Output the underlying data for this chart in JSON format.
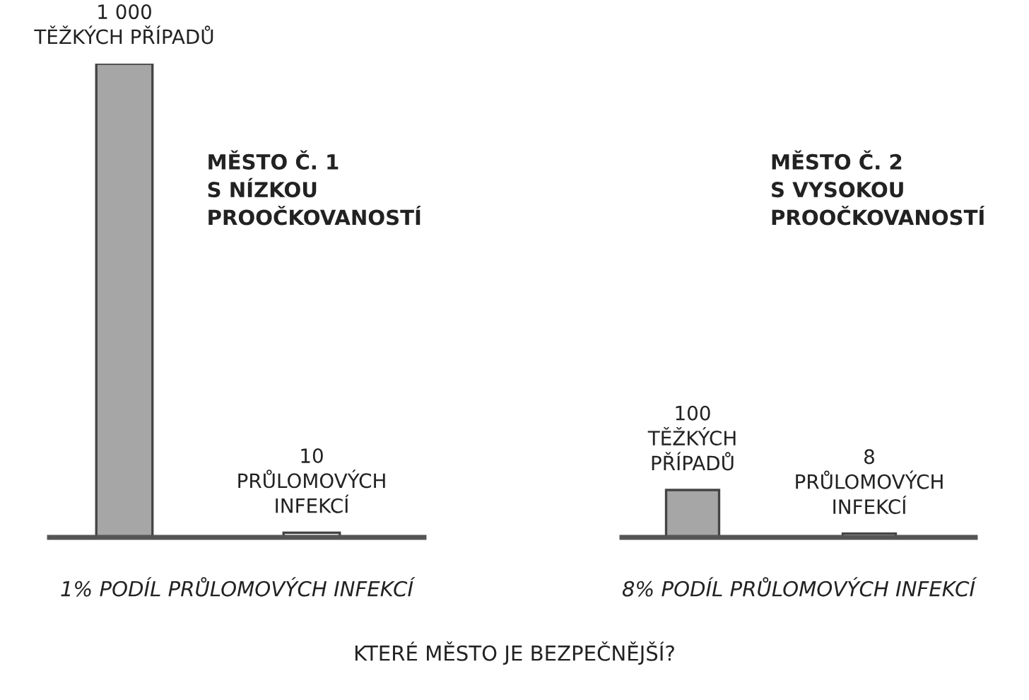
{
  "chart_data": [
    {
      "type": "bar",
      "categories": [
        null,
        null
      ],
      "values": [
        1000,
        10
      ],
      "colors": [
        "#a6a6a6",
        "#e8e8e8"
      ],
      "value_labels": [
        "1 000\nTĚŽKÝCH PŘÍPADŮ",
        "10\nPRŮLOMOVÝCH\nINFEKCÍ"
      ],
      "tick_labels": false,
      "grid": false,
      "legend": false,
      "xlabel": "1% PODÍL PRŮLOMOVÝCH INFEKCÍ",
      "annotations": [
        "MĚSTO Č. 1\nS NÍZKOU\nPROOČKOVANOSTÍ"
      ]
    },
    {
      "type": "bar",
      "categories": [
        null,
        null
      ],
      "values": [
        100,
        8
      ],
      "colors": [
        "#a6a6a6",
        "#e8e8e8"
      ],
      "value_labels": [
        "100\nTĚŽKÝCH\nPŘÍPADŮ",
        "8\nPRŮLOMOVÝCH\nINFEKCÍ"
      ],
      "tick_labels": false,
      "grid": false,
      "legend": false,
      "xlabel": "8% PODÍL PRŮLOMOVÝCH INFEKCÍ",
      "annotations": [
        "MĚSTO Č. 2\nS VYSOKOU\nPROOČKOVANOSTÍ",
        "KTERÉ MĚSTO JE BEZPEČNĚJŠÍ?"
      ]
    }
  ]
}
